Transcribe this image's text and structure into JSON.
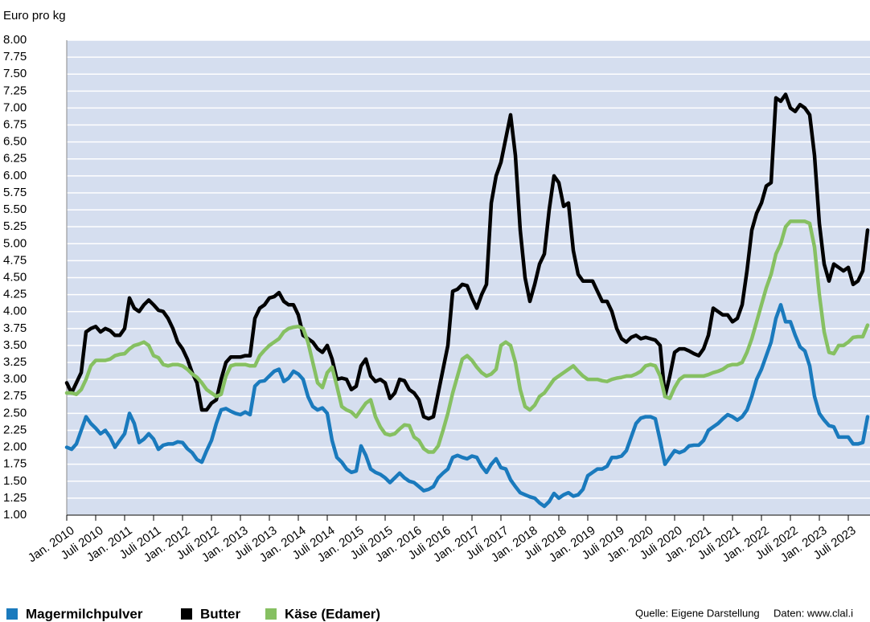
{
  "chart_data": {
    "type": "line",
    "y_label": "Euro pro kg",
    "categories": [
      "Jan. 2010",
      null,
      null,
      null,
      null,
      null,
      "Juli 2010",
      null,
      null,
      null,
      null,
      null,
      "Jan. 2011",
      null,
      null,
      null,
      null,
      null,
      "Juli 2011",
      null,
      null,
      null,
      null,
      null,
      "Jan. 2012",
      null,
      null,
      null,
      null,
      null,
      "Juli 2012",
      null,
      null,
      null,
      null,
      null,
      "Jan. 2013",
      null,
      null,
      null,
      null,
      null,
      "Juli 2013",
      null,
      null,
      null,
      null,
      null,
      "Jan. 2014",
      null,
      null,
      null,
      null,
      null,
      "Juli 2014",
      null,
      null,
      null,
      null,
      null,
      "Jan. 2015",
      null,
      null,
      null,
      null,
      null,
      "Juli 2015",
      null,
      null,
      null,
      null,
      null,
      "Jan. 2016",
      null,
      null,
      null,
      null,
      null,
      "Juli 2016",
      null,
      null,
      null,
      null,
      null,
      "Jan. 2017",
      null,
      null,
      null,
      null,
      null,
      "Juli 2017",
      null,
      null,
      null,
      null,
      null,
      "Jan. 2018",
      null,
      null,
      null,
      null,
      null,
      "Juli 2018",
      null,
      null,
      null,
      null,
      null,
      "Jan. 2019",
      null,
      null,
      null,
      null,
      null,
      "Juli 2019",
      null,
      null,
      null,
      null,
      null,
      "Jan. 2020",
      null,
      null,
      null,
      null,
      null,
      "Juli 2020",
      null,
      null,
      null,
      null,
      null,
      "Jan. 2021",
      null,
      null,
      null,
      null,
      null,
      "Juli 2021",
      null,
      null,
      null,
      null,
      null,
      "Jan. 2022",
      null,
      null,
      null,
      null,
      null,
      "Juli 2022",
      null,
      null,
      null,
      null,
      null,
      "Jan. 2023",
      null,
      null,
      null,
      null,
      null,
      "Juli 2023",
      null,
      null,
      null,
      null
    ],
    "series": [
      {
        "name": "Magermilchpulver",
        "color": "#1a7abd",
        "values": [
          2.0,
          1.97,
          2.05,
          2.25,
          2.45,
          2.35,
          2.28,
          2.2,
          2.25,
          2.15,
          2.0,
          2.1,
          2.2,
          2.5,
          2.35,
          2.07,
          2.12,
          2.2,
          2.12,
          1.97,
          2.03,
          2.05,
          2.05,
          2.08,
          2.07,
          1.98,
          1.92,
          1.82,
          1.78,
          1.95,
          2.1,
          2.35,
          2.55,
          2.57,
          2.53,
          2.5,
          2.48,
          2.52,
          2.48,
          2.9,
          2.97,
          2.98,
          3.05,
          3.12,
          3.15,
          2.97,
          3.02,
          3.12,
          3.08,
          3.0,
          2.75,
          2.6,
          2.55,
          2.58,
          2.5,
          2.1,
          1.85,
          1.78,
          1.68,
          1.63,
          1.65,
          2.02,
          1.88,
          1.68,
          1.63,
          1.6,
          1.55,
          1.48,
          1.55,
          1.62,
          1.55,
          1.5,
          1.48,
          1.42,
          1.36,
          1.38,
          1.42,
          1.55,
          1.62,
          1.68,
          1.85,
          1.88,
          1.85,
          1.83,
          1.87,
          1.85,
          1.72,
          1.63,
          1.75,
          1.83,
          1.7,
          1.68,
          1.52,
          1.42,
          1.33,
          1.3,
          1.27,
          1.25,
          1.18,
          1.13,
          1.2,
          1.32,
          1.25,
          1.3,
          1.33,
          1.28,
          1.3,
          1.38,
          1.58,
          1.63,
          1.68,
          1.68,
          1.72,
          1.85,
          1.85,
          1.87,
          1.95,
          2.15,
          2.35,
          2.43,
          2.45,
          2.45,
          2.42,
          2.1,
          1.75,
          1.85,
          1.95,
          1.92,
          1.95,
          2.02,
          2.03,
          2.03,
          2.1,
          2.25,
          2.3,
          2.35,
          2.42,
          2.48,
          2.45,
          2.4,
          2.45,
          2.55,
          2.75,
          3.0,
          3.15,
          3.35,
          3.55,
          3.9,
          4.1,
          3.85,
          3.85,
          3.65,
          3.48,
          3.42,
          3.2,
          2.75,
          2.5,
          2.4,
          2.32,
          2.3,
          2.15,
          2.15,
          2.15,
          2.05,
          2.05,
          2.07,
          2.45
        ]
      },
      {
        "name": "Butter",
        "color": "#000000",
        "values": [
          2.95,
          2.8,
          2.95,
          3.1,
          3.7,
          3.75,
          3.78,
          3.7,
          3.75,
          3.72,
          3.65,
          3.65,
          3.75,
          4.2,
          4.05,
          4.0,
          4.1,
          4.17,
          4.1,
          4.02,
          4.0,
          3.9,
          3.75,
          3.55,
          3.45,
          3.3,
          3.1,
          2.95,
          2.55,
          2.55,
          2.65,
          2.7,
          3.0,
          3.25,
          3.33,
          3.33,
          3.33,
          3.35,
          3.35,
          3.9,
          4.05,
          4.1,
          4.2,
          4.22,
          4.28,
          4.15,
          4.1,
          4.1,
          3.95,
          3.65,
          3.6,
          3.55,
          3.45,
          3.4,
          3.5,
          3.3,
          3.0,
          3.02,
          3.0,
          2.85,
          2.9,
          3.2,
          3.3,
          3.05,
          2.97,
          3.0,
          2.95,
          2.72,
          2.8,
          3.0,
          2.98,
          2.85,
          2.8,
          2.7,
          2.45,
          2.42,
          2.45,
          2.8,
          3.15,
          3.5,
          4.3,
          4.33,
          4.4,
          4.38,
          4.2,
          4.05,
          4.25,
          4.4,
          5.6,
          6.0,
          6.2,
          6.55,
          6.9,
          6.3,
          5.2,
          4.5,
          4.15,
          4.4,
          4.7,
          4.85,
          5.5,
          6.0,
          5.9,
          5.55,
          5.6,
          4.9,
          4.55,
          4.45,
          4.45,
          4.45,
          4.3,
          4.15,
          4.15,
          4.0,
          3.75,
          3.6,
          3.55,
          3.62,
          3.65,
          3.6,
          3.62,
          3.6,
          3.58,
          3.5,
          2.75,
          3.05,
          3.4,
          3.45,
          3.45,
          3.42,
          3.38,
          3.35,
          3.45,
          3.65,
          4.05,
          4.0,
          3.95,
          3.95,
          3.85,
          3.9,
          4.1,
          4.6,
          5.2,
          5.45,
          5.6,
          5.85,
          5.9,
          7.15,
          7.1,
          7.2,
          7.0,
          6.95,
          7.05,
          7.0,
          6.9,
          6.3,
          5.3,
          4.7,
          4.45,
          4.7,
          4.65,
          4.6,
          4.65,
          4.4,
          4.45,
          4.6,
          5.2
        ]
      },
      {
        "name": "Käse (Edamer)",
        "color": "#86c062",
        "values": [
          2.8,
          2.8,
          2.78,
          2.85,
          3.0,
          3.2,
          3.28,
          3.28,
          3.28,
          3.3,
          3.35,
          3.37,
          3.38,
          3.45,
          3.5,
          3.52,
          3.55,
          3.5,
          3.35,
          3.32,
          3.22,
          3.2,
          3.22,
          3.22,
          3.2,
          3.15,
          3.08,
          3.03,
          2.95,
          2.85,
          2.8,
          2.75,
          2.78,
          3.05,
          3.2,
          3.22,
          3.22,
          3.22,
          3.2,
          3.2,
          3.35,
          3.43,
          3.5,
          3.55,
          3.6,
          3.7,
          3.75,
          3.77,
          3.78,
          3.75,
          3.55,
          3.25,
          2.95,
          2.88,
          3.1,
          3.18,
          2.9,
          2.6,
          2.55,
          2.52,
          2.45,
          2.55,
          2.65,
          2.7,
          2.45,
          2.3,
          2.2,
          2.18,
          2.2,
          2.27,
          2.33,
          2.32,
          2.15,
          2.1,
          1.98,
          1.93,
          1.93,
          2.02,
          2.25,
          2.5,
          2.8,
          3.05,
          3.3,
          3.35,
          3.28,
          3.18,
          3.1,
          3.05,
          3.08,
          3.15,
          3.5,
          3.55,
          3.5,
          3.25,
          2.85,
          2.6,
          2.55,
          2.62,
          2.75,
          2.8,
          2.9,
          3.0,
          3.05,
          3.1,
          3.15,
          3.2,
          3.12,
          3.05,
          3.0,
          3.0,
          3.0,
          2.98,
          2.97,
          3.0,
          3.02,
          3.03,
          3.05,
          3.05,
          3.08,
          3.12,
          3.2,
          3.22,
          3.2,
          3.05,
          2.75,
          2.72,
          2.88,
          3.0,
          3.05,
          3.05,
          3.05,
          3.05,
          3.05,
          3.07,
          3.1,
          3.12,
          3.15,
          3.2,
          3.22,
          3.22,
          3.25,
          3.4,
          3.6,
          3.85,
          4.1,
          4.35,
          4.55,
          4.85,
          5.0,
          5.25,
          5.33,
          5.33,
          5.33,
          5.33,
          5.3,
          4.95,
          4.25,
          3.7,
          3.4,
          3.38,
          3.5,
          3.5,
          3.55,
          3.62,
          3.63,
          3.63,
          3.8
        ]
      }
    ],
    "ylim": [
      1,
      8
    ],
    "yticks": [
      {
        "value": 1,
        "label": "1.00"
      },
      {
        "value": 1.25,
        "label": "1.25"
      },
      {
        "value": 1.5,
        "label": "1.50"
      },
      {
        "value": 1.75,
        "label": "1.75"
      },
      {
        "value": 2,
        "label": "2.00"
      },
      {
        "value": 2.25,
        "label": "2.25"
      },
      {
        "value": 2.5,
        "label": "2.50"
      },
      {
        "value": 2.75,
        "label": "2.75"
      },
      {
        "value": 3,
        "label": "3.00"
      },
      {
        "value": 3.25,
        "label": "3.25"
      },
      {
        "value": 3.5,
        "label": "3.50"
      },
      {
        "value": 3.75,
        "label": "3.75"
      },
      {
        "value": 4,
        "label": "4.00"
      },
      {
        "value": 4.25,
        "label": "4.25"
      },
      {
        "value": 4.5,
        "label": "4.50"
      },
      {
        "value": 4.75,
        "label": "4.75"
      },
      {
        "value": 5,
        "label": "5.00"
      },
      {
        "value": 5.25,
        "label": "5.25"
      },
      {
        "value": 5.5,
        "label": "5.50"
      },
      {
        "value": 5.75,
        "label": "5.75"
      },
      {
        "value": 6,
        "label": "6.00"
      },
      {
        "value": 6.25,
        "label": "6.25"
      },
      {
        "value": 6.5,
        "label": "6.50"
      },
      {
        "value": 6.75,
        "label": "6.75"
      },
      {
        "value": 7,
        "label": "7.00"
      },
      {
        "value": 7.25,
        "label": "7.25"
      },
      {
        "value": 7.5,
        "label": "7.50"
      },
      {
        "value": 7.75,
        "label": "7.75"
      },
      {
        "value": 8,
        "label": "8.00"
      }
    ],
    "grid": true,
    "legend": "bottom-left",
    "source": "Quelle: Eigene Darstellung",
    "data_source": "Daten: www.clal.i"
  }
}
